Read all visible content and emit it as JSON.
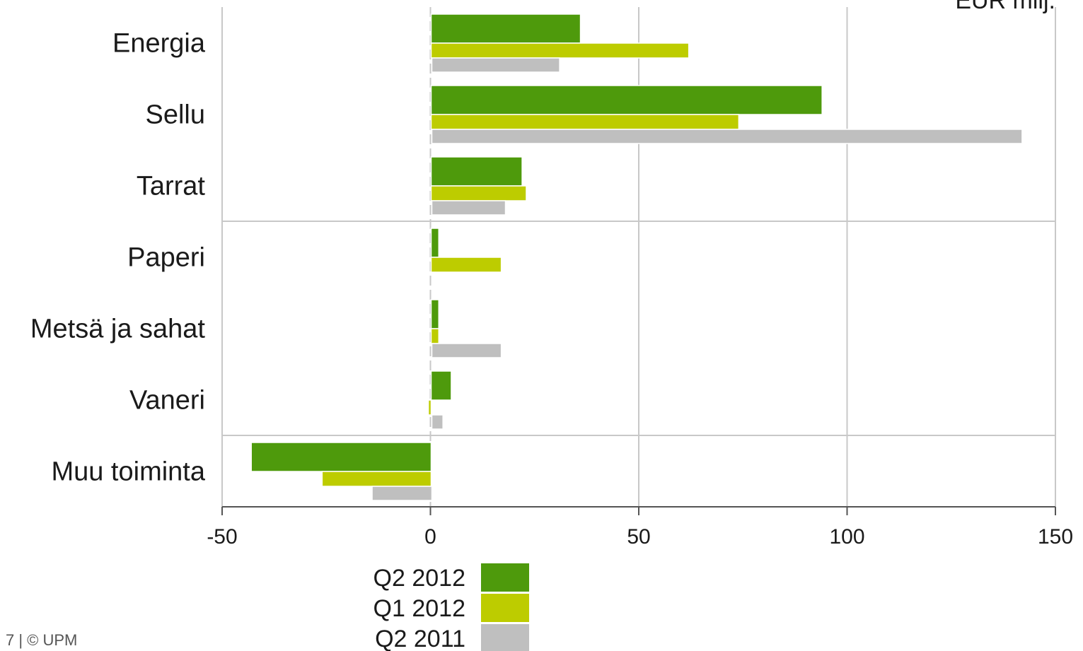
{
  "unit_label": "EUR milj.",
  "footer": "7 | © UPM",
  "chart_data": {
    "type": "bar",
    "orientation": "horizontal",
    "categories": [
      "Energia",
      "Sellu",
      "Tarrat",
      "Paperi",
      "Metsä ja sahat",
      "Vaneri",
      "Muu toiminta"
    ],
    "series": [
      {
        "name": "Q2 2012",
        "color": "#4e9a0c",
        "values": [
          36,
          94,
          22,
          2,
          2,
          5,
          -43
        ]
      },
      {
        "name": "Q1 2012",
        "color": "#bdcc00",
        "values": [
          62,
          74,
          23,
          17,
          2,
          -0.5,
          -26
        ]
      },
      {
        "name": "Q2 2011",
        "color": "#bfbfbf",
        "values": [
          31,
          142,
          18,
          0,
          17,
          3,
          -14
        ]
      }
    ],
    "xlim": [
      -50,
      150
    ],
    "xticks": [
      -50,
      0,
      50,
      100,
      150
    ],
    "xtick_labels": [
      "-50",
      "0",
      "50",
      "100",
      "150"
    ],
    "grid": true,
    "legend_position": "bottom"
  }
}
